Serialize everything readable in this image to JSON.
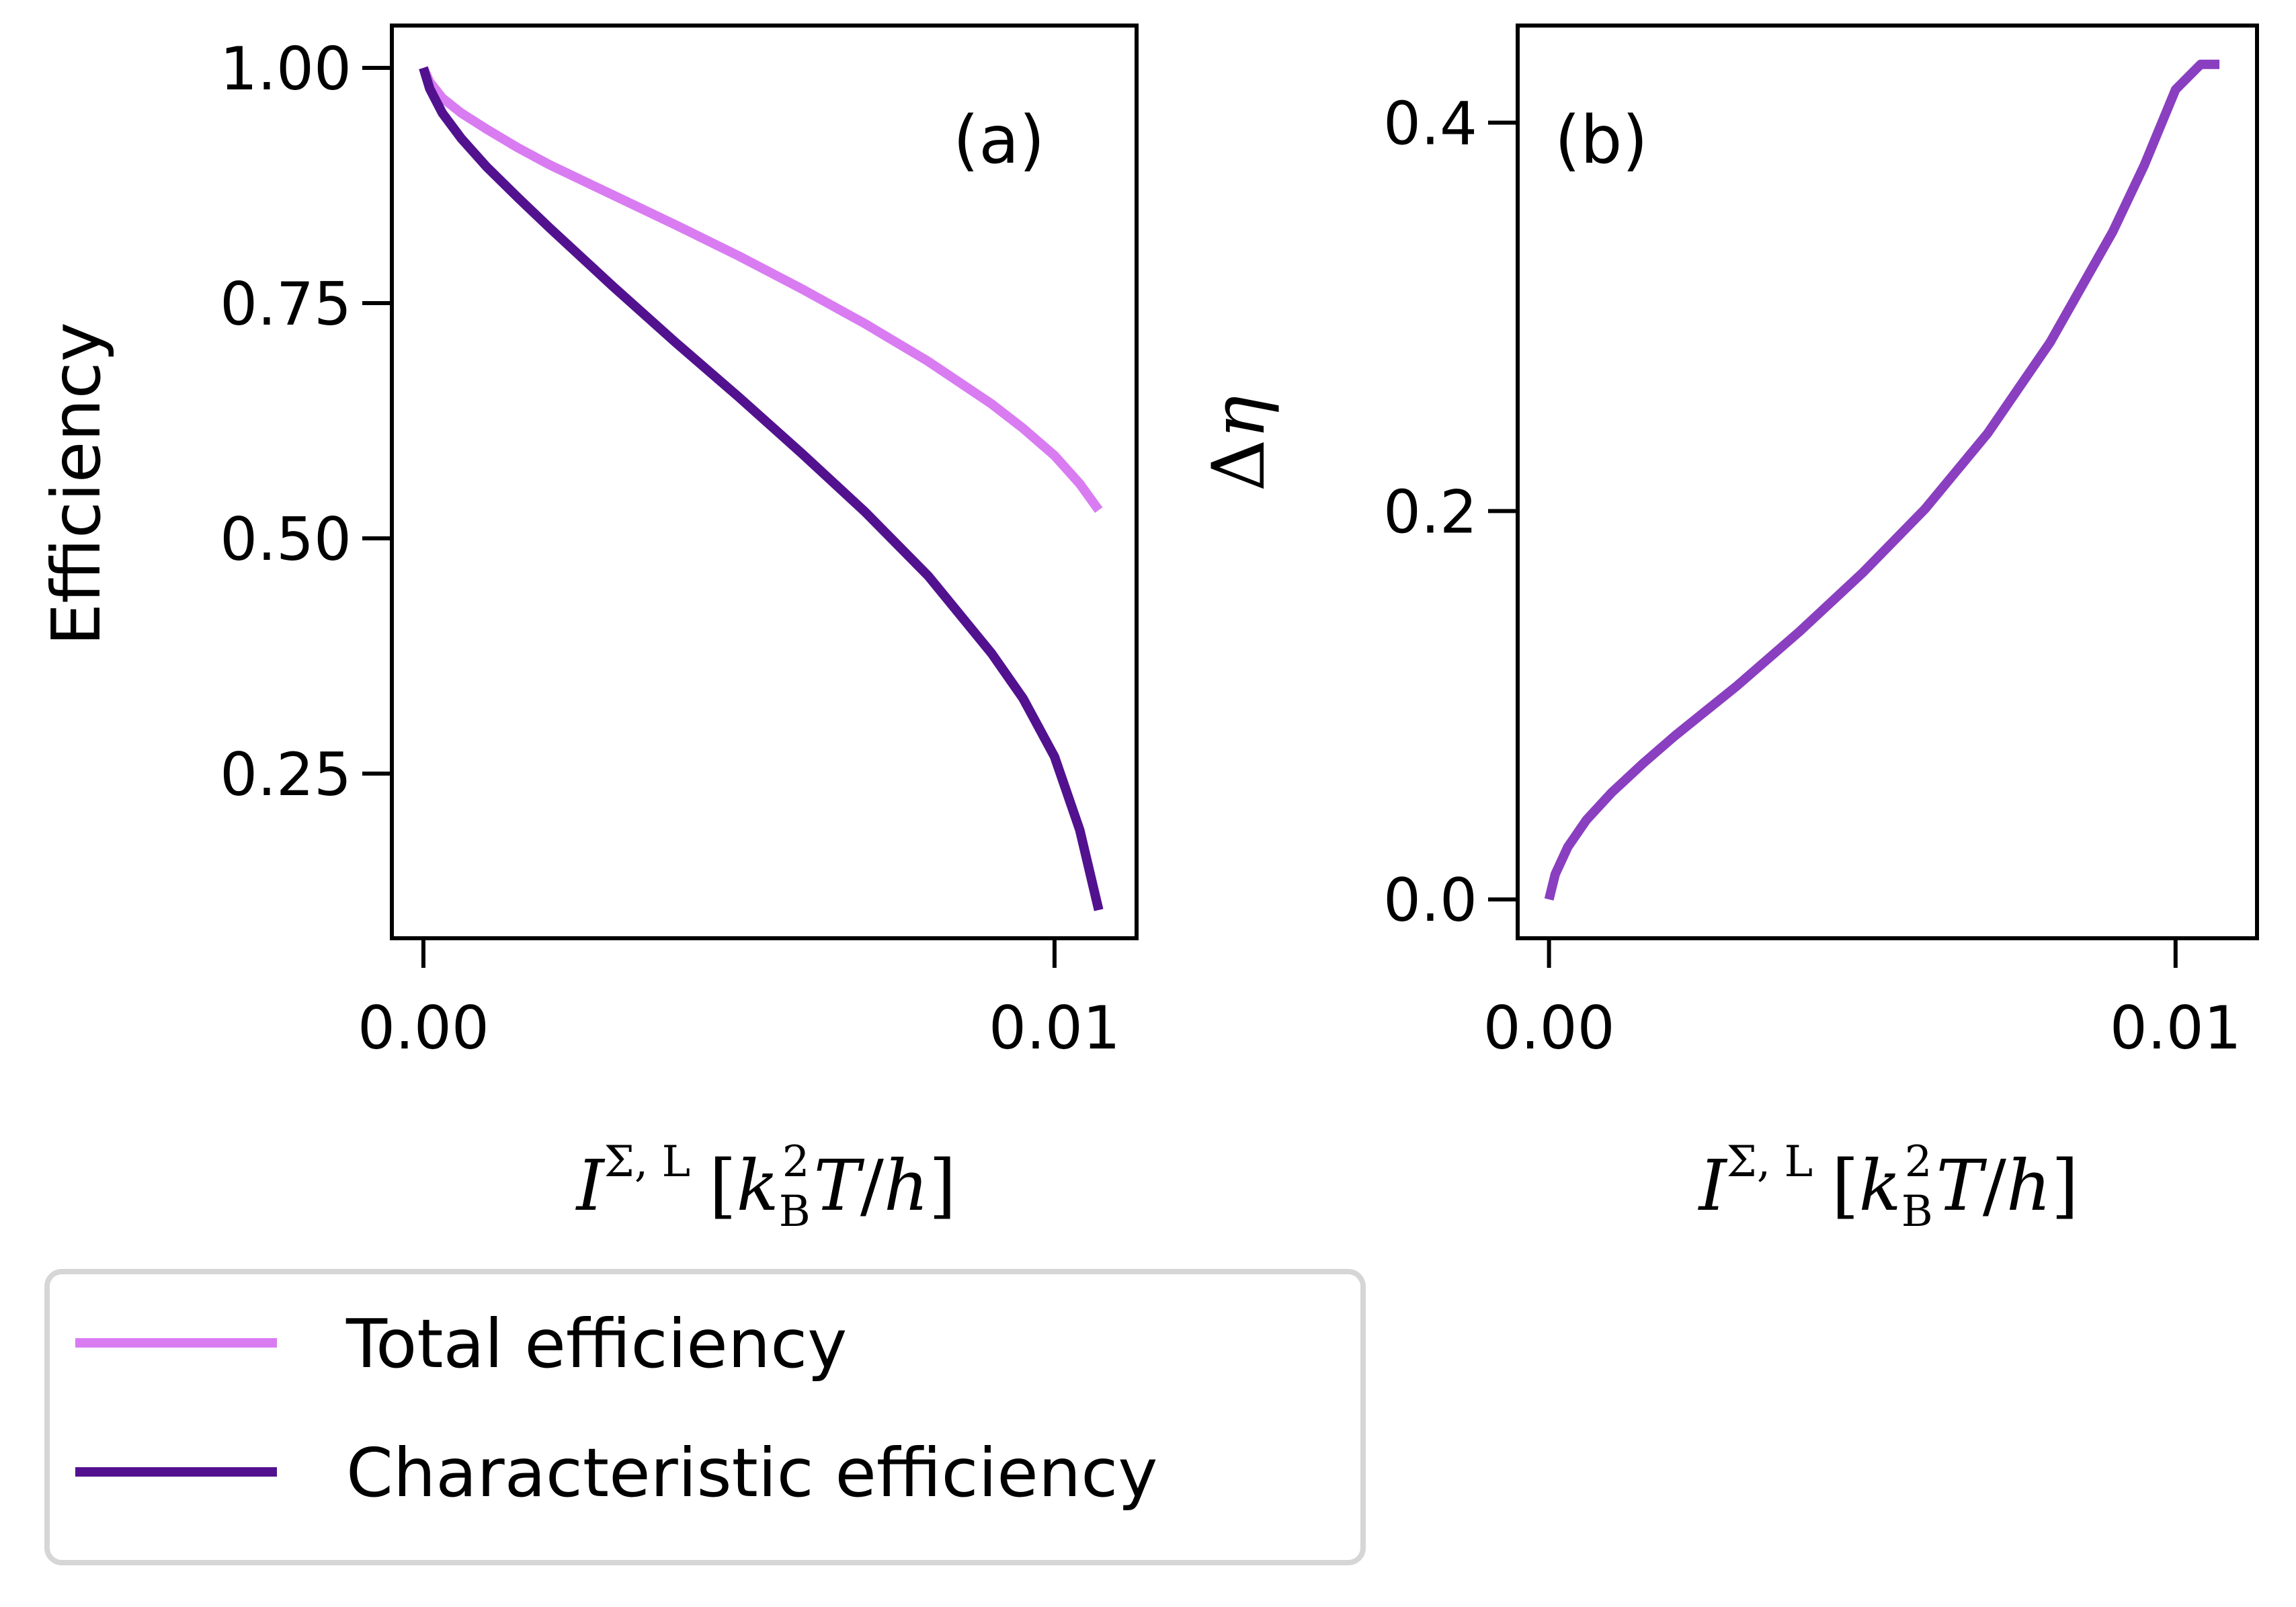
{
  "legend": {
    "items": [
      {
        "label": "Total efficiency",
        "color": "#d97cf2"
      },
      {
        "label": "Characteristic efficiency",
        "color": "#52128f"
      }
    ]
  },
  "chart_data": [
    {
      "type": "line",
      "panel_label": "(a)",
      "title": "",
      "ylabel": "Efficiency",
      "xlabel_parts": [
        "I",
        "Σ, L",
        "[",
        "k",
        "B",
        "2",
        "T",
        "/",
        "h",
        "]"
      ],
      "xlim": [
        -0.0005,
        0.0113
      ],
      "ylim": [
        0.075,
        1.045
      ],
      "x_ticks": [
        0.0,
        0.01
      ],
      "x_tick_labels": [
        "0.00",
        "0.01"
      ],
      "y_ticks": [
        0.25,
        0.5,
        0.75,
        1.0
      ],
      "y_tick_labels": [
        "0.25",
        "0.50",
        "0.75",
        "1.00"
      ],
      "series": [
        {
          "name": "Total efficiency",
          "color": "#d97cf2",
          "x": [
            0.0,
            0.0001,
            0.0003,
            0.0006,
            0.001,
            0.0015,
            0.002,
            0.003,
            0.004,
            0.005,
            0.006,
            0.007,
            0.008,
            0.009,
            0.0095,
            0.01,
            0.0104,
            0.0107
          ],
          "y": [
            1.0,
            0.985,
            0.968,
            0.952,
            0.935,
            0.915,
            0.897,
            0.865,
            0.833,
            0.8,
            0.765,
            0.728,
            0.688,
            0.643,
            0.617,
            0.588,
            0.558,
            0.53
          ]
        },
        {
          "name": "Characteristic efficiency",
          "color": "#52128f",
          "x": [
            0.0,
            0.0001,
            0.0003,
            0.0006,
            0.001,
            0.0015,
            0.002,
            0.003,
            0.004,
            0.005,
            0.006,
            0.007,
            0.008,
            0.009,
            0.0095,
            0.01,
            0.0104,
            0.0107
          ],
          "y": [
            1.0,
            0.978,
            0.952,
            0.925,
            0.895,
            0.862,
            0.83,
            0.768,
            0.708,
            0.65,
            0.59,
            0.528,
            0.46,
            0.378,
            0.33,
            0.268,
            0.19,
            0.105
          ]
        }
      ]
    },
    {
      "type": "line",
      "panel_label": "(b)",
      "title": "",
      "ylabel_parts": [
        "Δ",
        "η"
      ],
      "xlabel_parts": [
        "I",
        "Σ, L",
        "[",
        "k",
        "B",
        "2",
        "T",
        "/",
        "h",
        "]"
      ],
      "xlim": [
        -0.0005,
        0.0113
      ],
      "ylim": [
        -0.02,
        0.45
      ],
      "x_ticks": [
        0.0,
        0.01
      ],
      "x_tick_labels": [
        "0.00",
        "0.01"
      ],
      "y_ticks": [
        0.0,
        0.2,
        0.4
      ],
      "y_tick_labels": [
        "0.0",
        "0.2",
        "0.4"
      ],
      "series": [
        {
          "name": "Δη",
          "color": "#8a3fc0",
          "x": [
            0.0,
            0.0001,
            0.0003,
            0.0006,
            0.001,
            0.0015,
            0.002,
            0.003,
            0.004,
            0.005,
            0.006,
            0.007,
            0.008,
            0.009,
            0.0095,
            0.01,
            0.0104,
            0.0107
          ],
          "y": [
            0.0,
            0.013,
            0.027,
            0.041,
            0.055,
            0.07,
            0.084,
            0.11,
            0.138,
            0.168,
            0.201,
            0.24,
            0.287,
            0.344,
            0.378,
            0.417,
            0.43,
            0.43
          ]
        }
      ]
    }
  ]
}
